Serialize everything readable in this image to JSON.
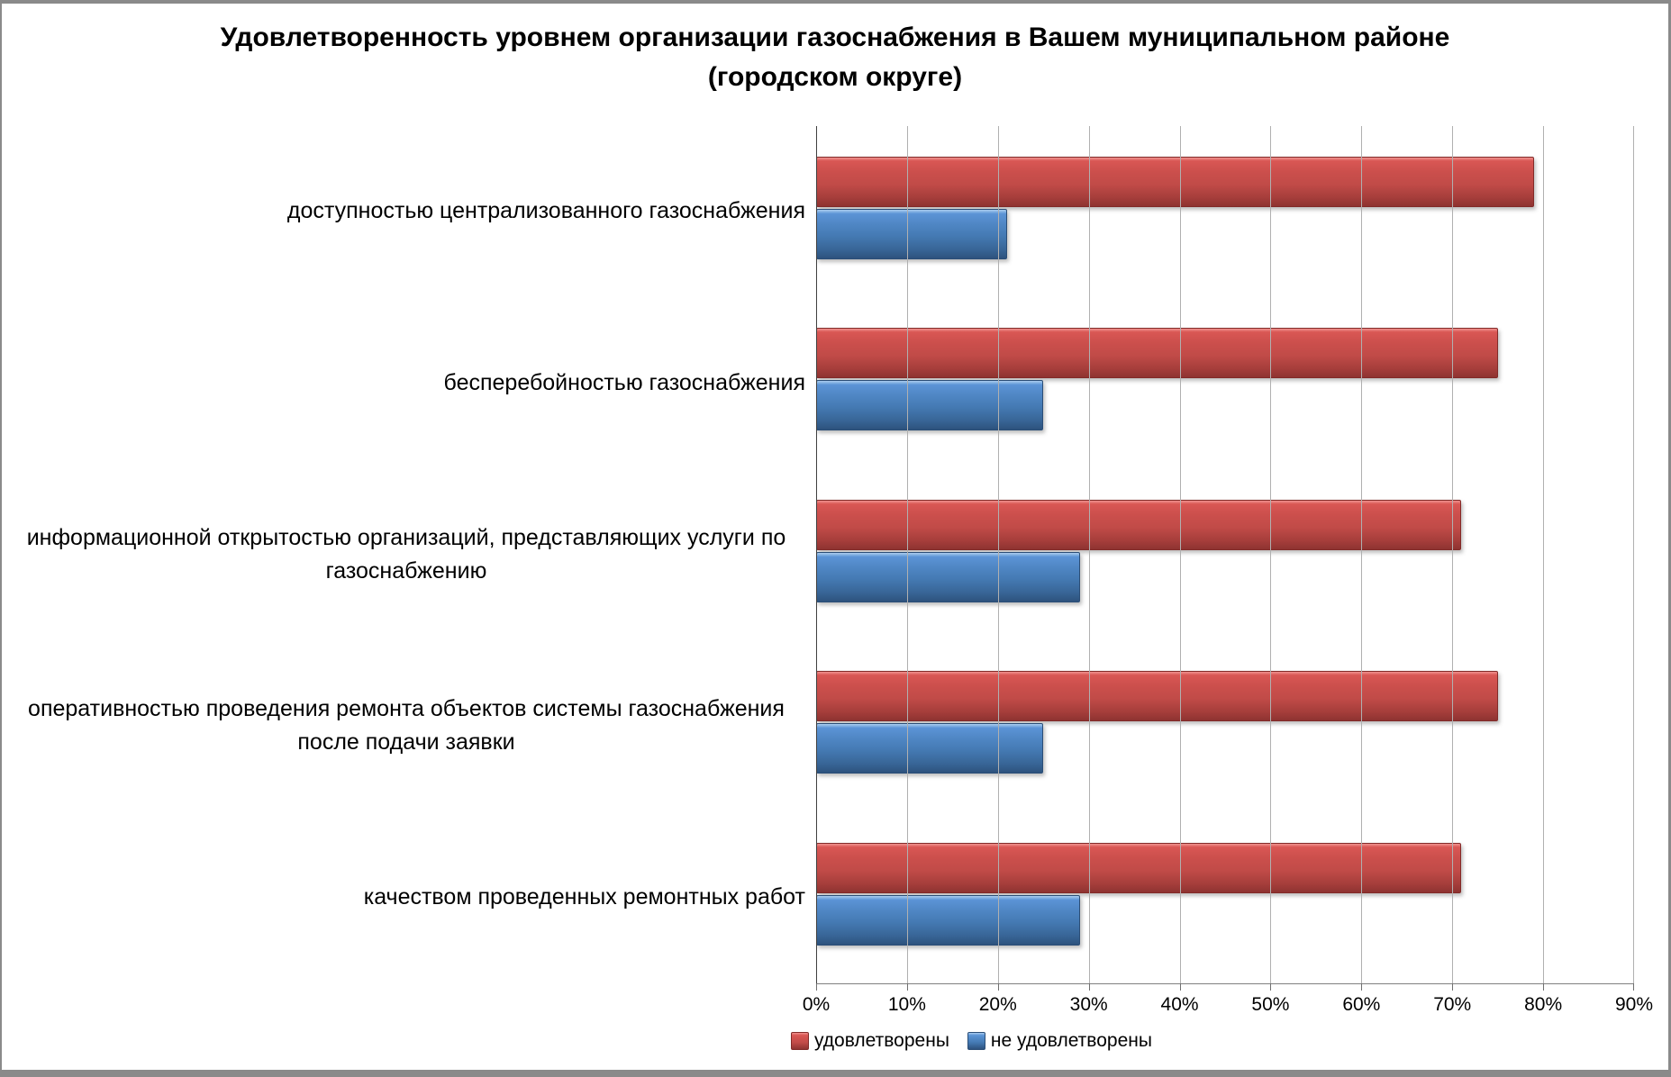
{
  "frame": {
    "border_color": "#8a8a8a",
    "background": "#ffffff"
  },
  "chart_data": {
    "type": "bar",
    "orientation": "horizontal",
    "title": "Удовлетворенность уровнем организации газоснабжения в Вашем муниципальном районе (городском округе)",
    "categories": [
      "доступностью централизованного газоснабжения",
      "бесперебойностью газоснабжения",
      "информационной открытостью организаций, представляющих услуги по газоснабжению",
      "оперативностью проведения ремонта объектов системы газоснабжения после подачи заявки",
      "качеством проведенных ремонтных работ"
    ],
    "series": [
      {
        "name": "удовлетворены",
        "color": "#c0504d",
        "values": [
          79,
          75,
          71,
          75,
          71
        ]
      },
      {
        "name": "не удовлетворены",
        "color": "#4f81bd",
        "values": [
          21,
          25,
          29,
          25,
          29
        ]
      }
    ],
    "x_axis": {
      "min": 0,
      "max": 90,
      "tick_step": 10,
      "ticks": [
        "0%",
        "10%",
        "20%",
        "30%",
        "40%",
        "50%",
        "60%",
        "70%",
        "80%",
        "90%"
      ],
      "grid": true,
      "gridline_color": "#b0b0b0",
      "axis_color": "#404040"
    },
    "legend_position": "bottom",
    "values_unit": "%"
  }
}
